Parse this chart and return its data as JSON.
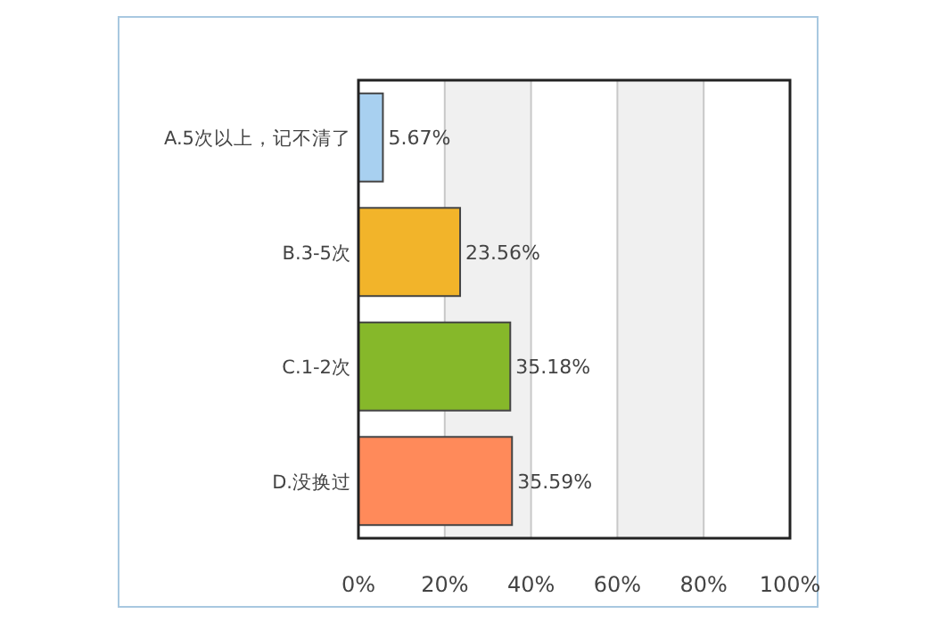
{
  "chart_data": {
    "type": "bar",
    "orientation": "horizontal",
    "categories": [
      "A.5次以上，记不清了",
      "B.3-5次",
      "C.1-2次",
      "D.没换过"
    ],
    "values": [
      5.67,
      23.56,
      35.18,
      35.59
    ],
    "colors": [
      "#a8d0f0",
      "#f2b42a",
      "#86b82a",
      "#ff8a5a"
    ],
    "value_labels": [
      "5.67%",
      "23.56%",
      "35.18%",
      "35.59%"
    ],
    "xlim": [
      0,
      100
    ],
    "xticks": [
      {
        "value": 0,
        "label": "0%"
      },
      {
        "value": 20,
        "label": "20%"
      },
      {
        "value": 40,
        "label": "40%"
      },
      {
        "value": 60,
        "label": "60%"
      },
      {
        "value": 80,
        "label": "80%"
      },
      {
        "value": 100,
        "label": "100%"
      }
    ],
    "grid": "x"
  }
}
